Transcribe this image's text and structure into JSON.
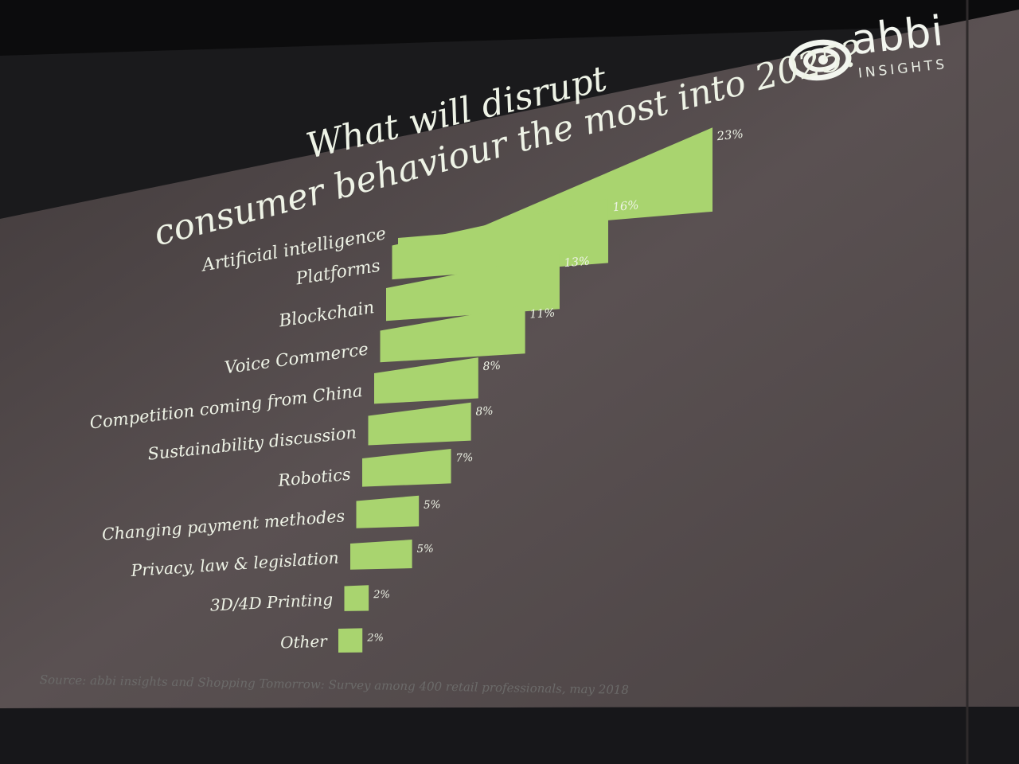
{
  "logo": {
    "brand": "abbi",
    "sub": "INSIGHTS"
  },
  "chart_data": {
    "type": "bar",
    "orientation": "horizontal",
    "title": "What will disrupt consumer behaviour the most into 2025?",
    "title_lines": [
      "What will disrupt",
      "consumer behaviour the most into 2025?"
    ],
    "categories": [
      "Artificial intelligence",
      "Platforms",
      "Blockchain",
      "Voice Commerce",
      "Competition coming from China",
      "Sustainability discussion",
      "Robotics",
      "Changing payment methodes",
      "Privacy, law & legislation",
      "3D/4D Printing",
      "Other"
    ],
    "values": [
      23,
      16,
      13,
      11,
      8,
      8,
      7,
      5,
      5,
      2,
      2
    ],
    "value_labels": [
      "23%",
      "16%",
      "13%",
      "11%",
      "8%",
      "8%",
      "7%",
      "5%",
      "5%",
      "2%",
      "2%"
    ],
    "unit": "%",
    "xlim": [
      0,
      23
    ],
    "bar_color": "#a9d46f",
    "grid": false,
    "legend": "none"
  },
  "source": "Source: abbi insights and Shopping Tomorrow: Survey among 400 retail professionals, may 2018",
  "colors": {
    "background": "#4d4546",
    "bar": "#a9d46f",
    "text": "#eef3e6"
  }
}
